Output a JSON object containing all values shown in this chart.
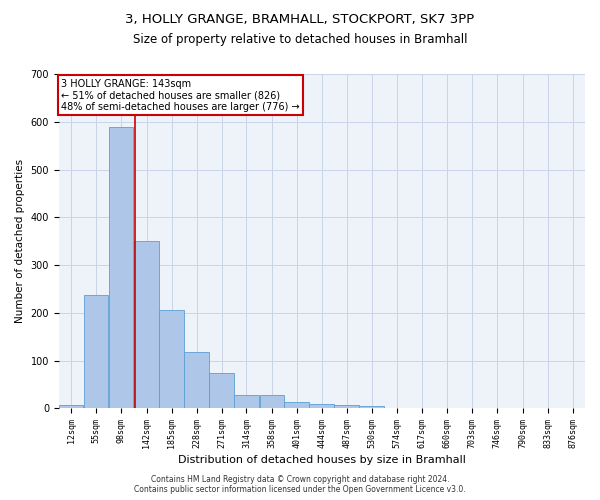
{
  "title1": "3, HOLLY GRANGE, BRAMHALL, STOCKPORT, SK7 3PP",
  "title2": "Size of property relative to detached houses in Bramhall",
  "xlabel": "Distribution of detached houses by size in Bramhall",
  "ylabel": "Number of detached properties",
  "footer1": "Contains HM Land Registry data © Crown copyright and database right 2024.",
  "footer2": "Contains public sector information licensed under the Open Government Licence v3.0.",
  "annotation_line1": "3 HOLLY GRANGE: 143sqm",
  "annotation_line2": "← 51% of detached houses are smaller (826)",
  "annotation_line3": "48% of semi-detached houses are larger (776) →",
  "bar_edges": [
    12,
    55,
    98,
    142,
    185,
    228,
    271,
    314,
    358,
    401,
    444,
    487,
    530,
    574,
    617,
    660,
    703,
    746,
    790,
    833,
    876
  ],
  "bar_values": [
    7,
    238,
    590,
    350,
    205,
    117,
    75,
    28,
    27,
    14,
    10,
    7,
    5,
    0,
    0,
    0,
    0,
    0,
    0,
    0,
    0
  ],
  "property_size": 143,
  "bar_color": "#aec6e8",
  "bar_edge_color": "#5a9fd4",
  "red_line_color": "#cc0000",
  "annotation_box_color": "#cc0000",
  "background_color": "#eef2f9",
  "grid_color": "#c8d4e8",
  "ylim": [
    0,
    700
  ],
  "yticks": [
    0,
    100,
    200,
    300,
    400,
    500,
    600,
    700
  ],
  "title1_fontsize": 9.5,
  "title2_fontsize": 8.5,
  "xlabel_fontsize": 8,
  "ylabel_fontsize": 7.5,
  "tick_fontsize": 6,
  "footer_fontsize": 5.5,
  "annot_fontsize": 7
}
